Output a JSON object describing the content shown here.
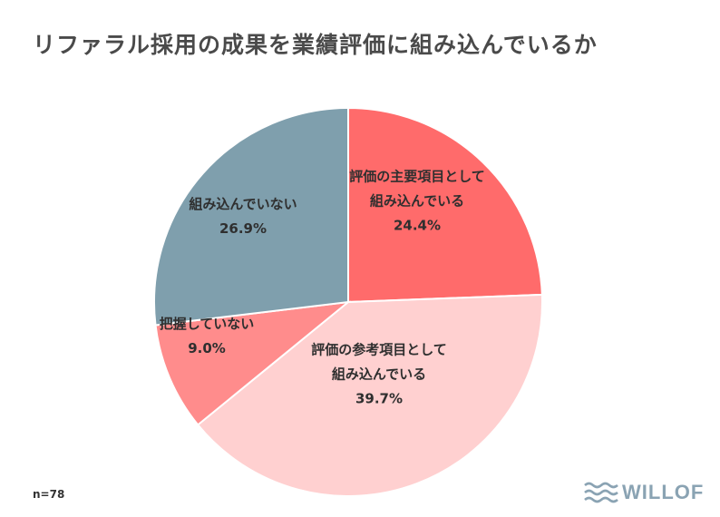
{
  "title": "リファラル採用の成果を業績評価に組み込んでいるか",
  "note": "n=78",
  "logo": {
    "text": "WILLOF"
  },
  "chart_data": {
    "type": "pie",
    "title": "リファラル採用の成果を業績評価に組み込んでいるか",
    "slices": [
      {
        "label_lines": [
          "評価の主要項目として",
          "組み込んでいる"
        ],
        "value": 24.4,
        "value_label": "24.4%",
        "color": "#ff6b6b"
      },
      {
        "label_lines": [
          "評価の参考項目として",
          "組み込んでいる"
        ],
        "value": 39.7,
        "value_label": "39.7%",
        "color": "#ffd0d0"
      },
      {
        "label_lines": [
          "把握していない"
        ],
        "value": 9.0,
        "value_label": "9.0%",
        "color": "#ff8c8c"
      },
      {
        "label_lines": [
          "組み込んでいない"
        ],
        "value": 26.9,
        "value_label": "26.9%",
        "color": "#7f9fad"
      }
    ]
  }
}
